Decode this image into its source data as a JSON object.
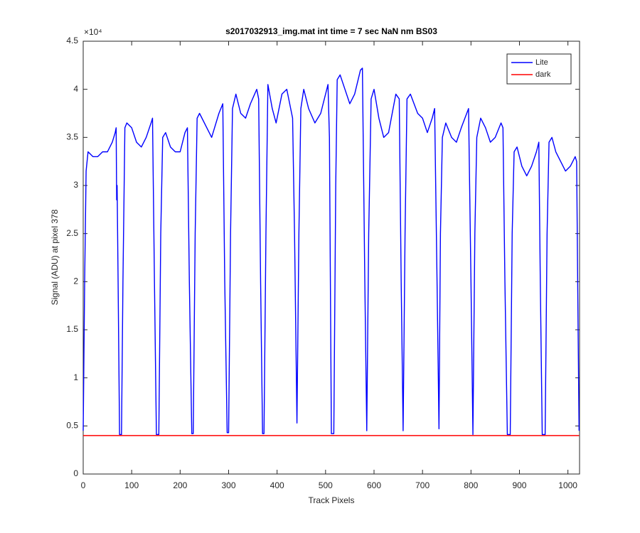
{
  "chart_data": {
    "type": "line",
    "title": "s2017032913_img.mat int time = 7 sec  NaN nm BS03",
    "x_label": "Track Pixels",
    "y_label": "Signal (ADU) at pixel 378",
    "y_scale_label": "×10⁴",
    "xlim": [
      0,
      1024
    ],
    "xticks": [
      0,
      100,
      200,
      300,
      400,
      500,
      600,
      700,
      800,
      900,
      1000
    ],
    "ylim": [
      0,
      4.5
    ],
    "yticks": [
      0,
      0.5,
      1,
      1.5,
      2,
      2.5,
      3,
      3.5,
      4,
      4.5
    ],
    "legend": "northeast",
    "grid": false,
    "series": [
      {
        "name": "Lite",
        "color": "#0000ff",
        "x": [
          0,
          3,
          6,
          10,
          20,
          30,
          40,
          50,
          60,
          66,
          68,
          69,
          70,
          72,
          75,
          79,
          82,
          86,
          90,
          100,
          110,
          120,
          130,
          140,
          143,
          147,
          151,
          156,
          160,
          164,
          170,
          180,
          190,
          200,
          210,
          215,
          219,
          224,
          227,
          231,
          235,
          240,
          255,
          265,
          280,
          288,
          292,
          297,
          300,
          304,
          308,
          315,
          325,
          335,
          345,
          358,
          362,
          366,
          370,
          373,
          377,
          381,
          390,
          398,
          410,
          420,
          432,
          436,
          441,
          445,
          449,
          455,
          465,
          478,
          490,
          505,
          508,
          512,
          517,
          521,
          524,
          530,
          540,
          550,
          560,
          572,
          576,
          581,
          585,
          589,
          594,
          600,
          610,
          620,
          630,
          645,
          652,
          656,
          660,
          664,
          668,
          675,
          690,
          700,
          710,
          720,
          725,
          730,
          734,
          737,
          741,
          748,
          760,
          770,
          780,
          795,
          800,
          804,
          808,
          812,
          820,
          830,
          840,
          850,
          862,
          866,
          870,
          875,
          881,
          885,
          889,
          895,
          905,
          915,
          925,
          935,
          940,
          943,
          947,
          953,
          957,
          961,
          967,
          975,
          985,
          995,
          1005,
          1015,
          1018,
          1021,
          1023
        ],
        "values": [
          0.45,
          2.0,
          3.15,
          3.35,
          3.3,
          3.3,
          3.35,
          3.35,
          3.45,
          3.55,
          3.6,
          2.85,
          3.0,
          2.0,
          0.41,
          0.41,
          2.0,
          3.6,
          3.65,
          3.6,
          3.45,
          3.4,
          3.5,
          3.65,
          3.7,
          2.0,
          0.41,
          0.41,
          2.5,
          3.5,
          3.55,
          3.4,
          3.35,
          3.35,
          3.55,
          3.6,
          2.0,
          0.42,
          0.42,
          2.5,
          3.7,
          3.75,
          3.6,
          3.5,
          3.75,
          3.85,
          2.0,
          0.43,
          0.43,
          2.5,
          3.8,
          3.95,
          3.75,
          3.7,
          3.85,
          4.0,
          3.9,
          2.0,
          0.42,
          0.42,
          2.5,
          4.05,
          3.8,
          3.65,
          3.95,
          4.0,
          3.7,
          2.5,
          0.53,
          2.5,
          3.8,
          4.0,
          3.8,
          3.65,
          3.75,
          4.05,
          3.5,
          0.42,
          0.42,
          3.0,
          4.1,
          4.15,
          4.0,
          3.85,
          3.95,
          4.2,
          4.22,
          2.0,
          0.45,
          2.5,
          3.9,
          4.0,
          3.7,
          3.5,
          3.55,
          3.95,
          3.9,
          2.0,
          0.45,
          2.5,
          3.9,
          3.95,
          3.75,
          3.7,
          3.55,
          3.7,
          3.8,
          2.0,
          0.47,
          2.5,
          3.5,
          3.65,
          3.5,
          3.45,
          3.6,
          3.8,
          2.0,
          0.41,
          2.5,
          3.5,
          3.7,
          3.6,
          3.45,
          3.5,
          3.65,
          3.6,
          2.0,
          0.41,
          0.41,
          2.5,
          3.35,
          3.4,
          3.2,
          3.1,
          3.2,
          3.35,
          3.45,
          2.0,
          0.41,
          0.41,
          2.5,
          3.45,
          3.5,
          3.35,
          3.25,
          3.15,
          3.2,
          3.3,
          3.25,
          1.5,
          0.45
        ]
      },
      {
        "name": "dark",
        "color": "#ff0000",
        "x": [
          0,
          1023
        ],
        "values": [
          0.4,
          0.4
        ]
      }
    ]
  }
}
